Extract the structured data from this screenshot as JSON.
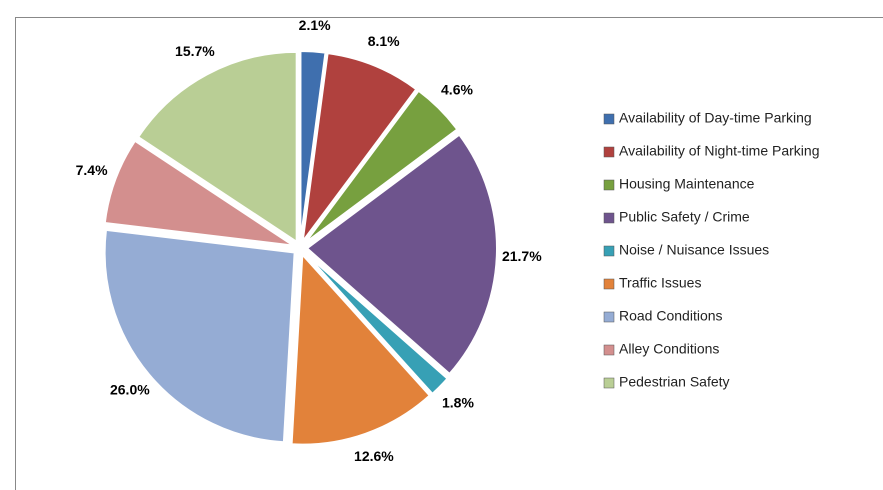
{
  "chart_data": {
    "type": "pie",
    "categories": [
      "Availability of Day-time Parking",
      "Availability of Night-time Parking",
      "Housing Maintenance",
      "Public Safety / Crime",
      "Noise / Nuisance Issues",
      "Traffic Issues",
      "Road Conditions",
      "Alley Conditions",
      "Pedestrian Safety"
    ],
    "values": [
      2.1,
      8.1,
      4.6,
      21.7,
      1.8,
      12.6,
      26.0,
      7.4,
      15.7
    ],
    "value_labels": [
      "2.1%",
      "8.1%",
      "4.6%",
      "21.7%",
      "1.8%",
      "12.6%",
      "26.0%",
      "7.4%",
      "15.7%"
    ],
    "colors": [
      "#3f6fae",
      "#b0413e",
      "#77a03f",
      "#6e548d",
      "#37a0b5",
      "#e2823a",
      "#95acd4",
      "#d38f8e",
      "#b9ce95"
    ],
    "legend": "right"
  }
}
